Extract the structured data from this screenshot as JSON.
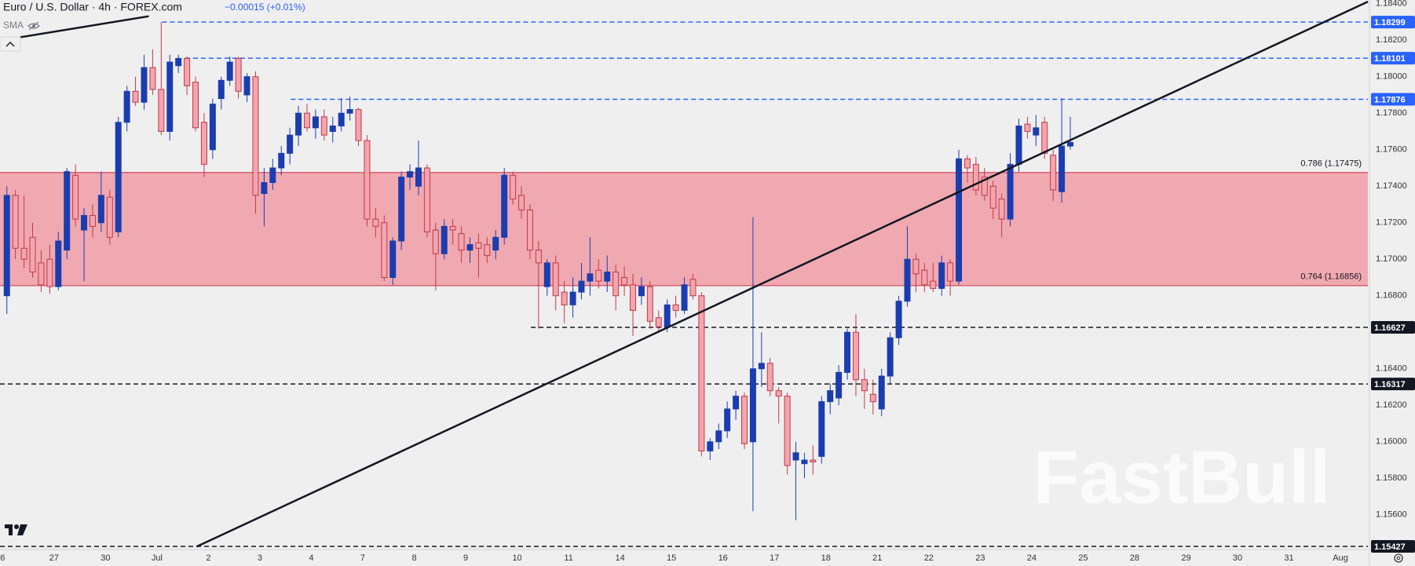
{
  "chart_data": {
    "type": "candlestick",
    "title": "Euro / U.S. Dollar · 4h · FOREX.com",
    "change": "−0.00015 (+0.01%)",
    "indicator": "SMA",
    "watermark": "FastBull",
    "up_color": "#1b3db0",
    "down_color": "#f4a5ad",
    "down_edge": "#c0394b",
    "grid": false,
    "xlim": [
      -0.3,
      159.2
    ],
    "ylim": [
      1.1541,
      1.1842
    ],
    "yticks": [
      {
        "value": 1.184,
        "label": "1.18400"
      },
      {
        "value": 1.182,
        "label": "1.18200"
      },
      {
        "value": 1.18,
        "label": "1.18000"
      },
      {
        "value": 1.178,
        "label": "1.17800"
      },
      {
        "value": 1.176,
        "label": "1.17600"
      },
      {
        "value": 1.174,
        "label": "1.17400"
      },
      {
        "value": 1.172,
        "label": "1.17200"
      },
      {
        "value": 1.17,
        "label": "1.17000"
      },
      {
        "value": 1.168,
        "label": "1.16800"
      },
      {
        "value": 1.164,
        "label": "1.16400"
      },
      {
        "value": 1.162,
        "label": "1.16200"
      },
      {
        "value": 1.16,
        "label": "1.16000"
      },
      {
        "value": 1.158,
        "label": "1.15800"
      },
      {
        "value": 1.156,
        "label": "1.15600"
      }
    ],
    "xticks": [
      {
        "value": 0,
        "label": "6"
      },
      {
        "value": 6,
        "label": "27"
      },
      {
        "value": 12,
        "label": "30"
      },
      {
        "value": 18,
        "label": "Jul"
      },
      {
        "value": 24,
        "label": "2"
      },
      {
        "value": 30,
        "label": "3"
      },
      {
        "value": 36,
        "label": "4"
      },
      {
        "value": 42,
        "label": "7"
      },
      {
        "value": 48,
        "label": "8"
      },
      {
        "value": 54,
        "label": "9"
      },
      {
        "value": 60,
        "label": "10"
      },
      {
        "value": 66,
        "label": "11"
      },
      {
        "value": 72,
        "label": "14"
      },
      {
        "value": 78,
        "label": "15"
      },
      {
        "value": 84,
        "label": "16"
      },
      {
        "value": 90,
        "label": "17"
      },
      {
        "value": 96,
        "label": "18"
      },
      {
        "value": 102,
        "label": "21"
      },
      {
        "value": 108,
        "label": "22"
      },
      {
        "value": 114,
        "label": "23"
      },
      {
        "value": 120,
        "label": "24"
      },
      {
        "value": 126,
        "label": "25"
      },
      {
        "value": 132,
        "label": "28"
      },
      {
        "value": 138,
        "label": "29"
      },
      {
        "value": 144,
        "label": "30"
      },
      {
        "value": 150,
        "label": "31"
      },
      {
        "value": 156,
        "label": "Aug"
      }
    ],
    "zone": {
      "color": "#f0a9b0",
      "edge": "#d96070",
      "levels": [
        {
          "label": "0.786 (1.17475)",
          "value": 1.17475
        },
        {
          "label": "0.764 (1.16856)",
          "value": 1.16856
        }
      ]
    },
    "levels": [
      {
        "value": 1.18299,
        "start": 18.6,
        "color": "#2962ff"
      },
      {
        "value": 1.18101,
        "start": 21.3,
        "color": "#2962ff"
      },
      {
        "value": 1.17876,
        "start": 33.6,
        "color": "#2962ff"
      },
      {
        "value": 1.16627,
        "start": 61.6,
        "color": "#131722"
      },
      {
        "value": 1.16317,
        "start": -0.3,
        "color": "#131722"
      },
      {
        "value": 1.15427,
        "start": -0.3,
        "color": "#131722"
      }
    ],
    "trendlines": [
      {
        "x": [
          22.63,
          159.2
        ],
        "y": [
          1.15426,
          1.18411
        ]
      },
      {
        "x": [
          -0.3,
          17.05
        ],
        "y": [
          1.18198,
          1.18331
        ]
      }
    ],
    "candles": [
      [
        1.168,
        1.174,
        1.167,
        1.1735
      ],
      [
        1.1735,
        1.1738,
        1.17,
        1.1706
      ],
      [
        1.1706,
        1.1735,
        1.1695,
        1.17
      ],
      [
        1.1712,
        1.172,
        1.169,
        1.1693
      ],
      [
        1.1698,
        1.1705,
        1.1682,
        1.1686
      ],
      [
        1.17,
        1.1708,
        1.1681,
        1.1685
      ],
      [
        1.1685,
        1.1715,
        1.1683,
        1.171
      ],
      [
        1.1705,
        1.175,
        1.17,
        1.1748
      ],
      [
        1.1746,
        1.1752,
        1.1718,
        1.1722
      ],
      [
        1.1716,
        1.1728,
        1.1688,
        1.1724
      ],
      [
        1.1724,
        1.173,
        1.1712,
        1.1718
      ],
      [
        1.172,
        1.1748,
        1.1715,
        1.1735
      ],
      [
        1.1734,
        1.1738,
        1.1708,
        1.1712
      ],
      [
        1.1715,
        1.1778,
        1.1712,
        1.1775
      ],
      [
        1.1775,
        1.1795,
        1.177,
        1.1792
      ],
      [
        1.1792,
        1.18,
        1.1784,
        1.1786
      ],
      [
        1.1786,
        1.1812,
        1.1782,
        1.1805
      ],
      [
        1.1805,
        1.1815,
        1.179,
        1.1793
      ],
      [
        1.1793,
        1.183,
        1.1768,
        1.177
      ],
      [
        1.177,
        1.1812,
        1.1765,
        1.1808
      ],
      [
        1.1806,
        1.1812,
        1.1802,
        1.181
      ],
      [
        1.181,
        1.1811,
        1.179,
        1.1795
      ],
      [
        1.1797,
        1.18,
        1.177,
        1.1772
      ],
      [
        1.1775,
        1.178,
        1.1745,
        1.1752
      ],
      [
        1.176,
        1.1788,
        1.1755,
        1.1785
      ],
      [
        1.1788,
        1.18,
        1.1782,
        1.1798
      ],
      [
        1.1798,
        1.1811,
        1.1795,
        1.1808
      ],
      [
        1.181,
        1.1811,
        1.1788,
        1.1792
      ],
      [
        1.179,
        1.1802,
        1.1786,
        1.18
      ],
      [
        1.18,
        1.1803,
        1.1725,
        1.1735
      ],
      [
        1.1736,
        1.175,
        1.1718,
        1.1742
      ],
      [
        1.1742,
        1.1755,
        1.1738,
        1.175
      ],
      [
        1.175,
        1.1762,
        1.1746,
        1.1758
      ],
      [
        1.1758,
        1.1772,
        1.1752,
        1.1768
      ],
      [
        1.1768,
        1.1784,
        1.1762,
        1.178
      ],
      [
        1.178,
        1.1785,
        1.177,
        1.1772
      ],
      [
        1.1772,
        1.1782,
        1.1766,
        1.1778
      ],
      [
        1.1778,
        1.1782,
        1.1765,
        1.1768
      ],
      [
        1.177,
        1.1778,
        1.1764,
        1.1773
      ],
      [
        1.1773,
        1.1788,
        1.177,
        1.178
      ],
      [
        1.178,
        1.1789,
        1.1776,
        1.1782
      ],
      [
        1.1782,
        1.1783,
        1.1762,
        1.1765
      ],
      [
        1.1765,
        1.1768,
        1.1718,
        1.1722
      ],
      [
        1.1722,
        1.1728,
        1.1712,
        1.1718
      ],
      [
        1.172,
        1.1724,
        1.1688,
        1.169
      ],
      [
        1.169,
        1.1712,
        1.1686,
        1.171
      ],
      [
        1.171,
        1.1748,
        1.1705,
        1.1745
      ],
      [
        1.1745,
        1.1752,
        1.1738,
        1.1748
      ],
      [
        1.174,
        1.1765,
        1.1735,
        1.175
      ],
      [
        1.175,
        1.1752,
        1.1712,
        1.1715
      ],
      [
        1.1716,
        1.172,
        1.1683,
        1.1703
      ],
      [
        1.1703,
        1.1722,
        1.17,
        1.1718
      ],
      [
        1.1718,
        1.1722,
        1.1708,
        1.1716
      ],
      [
        1.1714,
        1.1718,
        1.1698,
        1.1705
      ],
      [
        1.1705,
        1.1712,
        1.1698,
        1.1708
      ],
      [
        1.1709,
        1.1714,
        1.169,
        1.1706
      ],
      [
        1.1708,
        1.1712,
        1.1698,
        1.1702
      ],
      [
        1.1705,
        1.1716,
        1.17,
        1.1712
      ],
      [
        1.1712,
        1.175,
        1.1708,
        1.1746
      ],
      [
        1.1746,
        1.1748,
        1.173,
        1.1733
      ],
      [
        1.1735,
        1.174,
        1.1722,
        1.1727
      ],
      [
        1.1727,
        1.173,
        1.17,
        1.1705
      ],
      [
        1.1705,
        1.171,
        1.1662,
        1.1698
      ],
      [
        1.1685,
        1.17,
        1.168,
        1.1698
      ],
      [
        1.1698,
        1.1702,
        1.1672,
        1.168
      ],
      [
        1.1682,
        1.1688,
        1.1665,
        1.1675
      ],
      [
        1.1675,
        1.169,
        1.1668,
        1.1682
      ],
      [
        1.1682,
        1.1698,
        1.1678,
        1.1688
      ],
      [
        1.1688,
        1.1712,
        1.168,
        1.1692
      ],
      [
        1.1694,
        1.17,
        1.1684,
        1.1688
      ],
      [
        1.1688,
        1.1702,
        1.1682,
        1.1693
      ],
      [
        1.1693,
        1.1697,
        1.1672,
        1.168
      ],
      [
        1.169,
        1.1696,
        1.168,
        1.1686
      ],
      [
        1.1686,
        1.1692,
        1.1658,
        1.1672
      ],
      [
        1.168,
        1.169,
        1.1675,
        1.1685
      ],
      [
        1.1685,
        1.1688,
        1.1662,
        1.1666
      ],
      [
        1.1668,
        1.1672,
        1.166,
        1.1663
      ],
      [
        1.1663,
        1.1678,
        1.166,
        1.1675
      ],
      [
        1.1675,
        1.168,
        1.1668,
        1.1672
      ],
      [
        1.1672,
        1.169,
        1.167,
        1.1686
      ],
      [
        1.1689,
        1.1692,
        1.1678,
        1.168
      ],
      [
        1.168,
        1.1682,
        1.1592,
        1.1595
      ],
      [
        1.1595,
        1.1602,
        1.159,
        1.16
      ],
      [
        1.16,
        1.161,
        1.1596,
        1.1606
      ],
      [
        1.1606,
        1.1622,
        1.1602,
        1.1618
      ],
      [
        1.1618,
        1.1628,
        1.1612,
        1.1625
      ],
      [
        1.1625,
        1.1627,
        1.1596,
        1.1599
      ],
      [
        1.16,
        1.1723,
        1.1562,
        1.164
      ],
      [
        1.164,
        1.166,
        1.163,
        1.1643
      ],
      [
        1.1643,
        1.1646,
        1.1625,
        1.1628
      ],
      [
        1.1628,
        1.163,
        1.161,
        1.1625
      ],
      [
        1.1625,
        1.1627,
        1.1582,
        1.1587
      ],
      [
        1.159,
        1.16,
        1.1557,
        1.1594
      ],
      [
        1.1588,
        1.1594,
        1.158,
        1.159
      ],
      [
        1.159,
        1.1598,
        1.1582,
        1.1589
      ],
      [
        1.1592,
        1.1625,
        1.1588,
        1.1622
      ],
      [
        1.1622,
        1.1632,
        1.1615,
        1.1628
      ],
      [
        1.1624,
        1.1642,
        1.162,
        1.1638
      ],
      [
        1.1638,
        1.1662,
        1.1634,
        1.166
      ],
      [
        1.166,
        1.167,
        1.1625,
        1.1634
      ],
      [
        1.1634,
        1.164,
        1.1618,
        1.1628
      ],
      [
        1.1626,
        1.1634,
        1.1615,
        1.1622
      ],
      [
        1.1618,
        1.164,
        1.1614,
        1.1636
      ],
      [
        1.1636,
        1.166,
        1.1632,
        1.1657
      ],
      [
        1.1657,
        1.168,
        1.1653,
        1.1677
      ],
      [
        1.1677,
        1.1718,
        1.1674,
        1.17
      ],
      [
        1.17,
        1.1703,
        1.1682,
        1.1692
      ],
      [
        1.1694,
        1.1698,
        1.1682,
        1.1686
      ],
      [
        1.1688,
        1.1698,
        1.1682,
        1.1684
      ],
      [
        1.1684,
        1.1702,
        1.168,
        1.1698
      ],
      [
        1.1698,
        1.17,
        1.168,
        1.1688
      ],
      [
        1.1688,
        1.176,
        1.1686,
        1.1755
      ],
      [
        1.1755,
        1.1757,
        1.1742,
        1.175
      ],
      [
        1.1752,
        1.1756,
        1.1735,
        1.1738
      ],
      [
        1.1745,
        1.175,
        1.1732,
        1.1735
      ],
      [
        1.174,
        1.1743,
        1.1722,
        1.1728
      ],
      [
        1.1733,
        1.1736,
        1.1712,
        1.1722
      ],
      [
        1.1722,
        1.1758,
        1.1718,
        1.1752
      ],
      [
        1.1752,
        1.1777,
        1.1748,
        1.1773
      ],
      [
        1.1774,
        1.1778,
        1.1766,
        1.177
      ],
      [
        1.1768,
        1.1779,
        1.1762,
        1.1772
      ],
      [
        1.1775,
        1.1778,
        1.1755,
        1.1758
      ],
      [
        1.1757,
        1.176,
        1.1732,
        1.1738
      ],
      [
        1.1737,
        1.1788,
        1.1731,
        1.1762
      ],
      [
        1.1762,
        1.1778,
        1.176,
        1.1764
      ]
    ]
  }
}
